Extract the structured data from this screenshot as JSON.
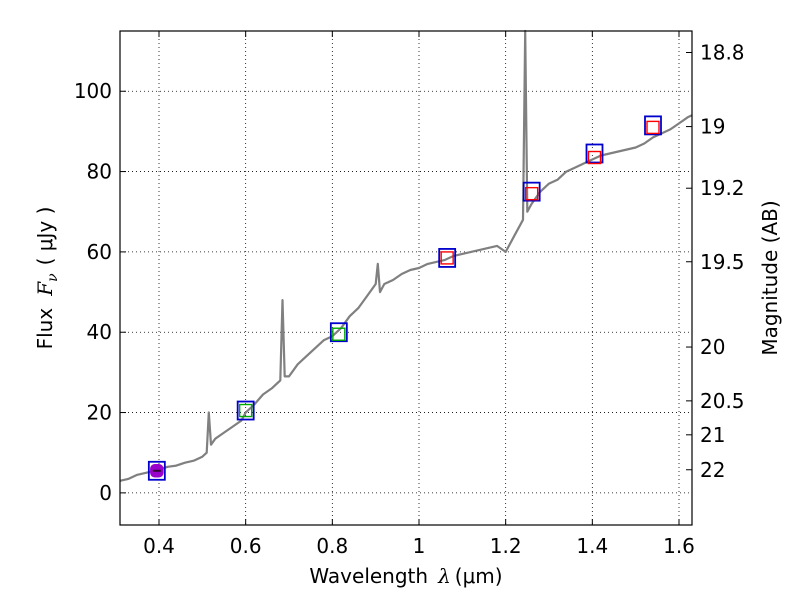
{
  "chart_data": {
    "type": "line",
    "xlabel": "Wavelength",
    "xlabel_symbol": "λ",
    "xlabel_unit": "(μm)",
    "ylabel": "Flux",
    "ylabel_symbol": "F",
    "ylabel_subscript": "ν",
    "ylabel_unit": "( μJy )",
    "y2label": "Magnitude (AB)",
    "xlim": [
      0.31,
      1.63
    ],
    "ylim": [
      -8,
      115
    ],
    "x_ticks": [
      0.4,
      0.6,
      0.8,
      1.0,
      1.2,
      1.4,
      1.6
    ],
    "x_tick_labels": [
      "0.4",
      "0.6",
      "0.8",
      "1",
      "1.2",
      "1.4",
      "1.6"
    ],
    "y_ticks": [
      0,
      20,
      40,
      60,
      80,
      100
    ],
    "y_tick_labels": [
      "0",
      "20",
      "40",
      "60",
      "80",
      "100"
    ],
    "mag_ticks": [
      18.8,
      19,
      19.2,
      19.5,
      20,
      20.5,
      21,
      22
    ],
    "mag_tick_labels": [
      "18.8",
      "19",
      "19.2",
      "19.5",
      "20",
      "20.5",
      "21",
      "22"
    ],
    "grid": true,
    "colors": {
      "spectrum": "#808080",
      "photometry_square": "#0000cc",
      "model_red": "#ff0000",
      "model_green": "#00aa00",
      "model_purple": "#9900cc"
    },
    "spectrum": {
      "name": "spectrum",
      "x": [
        0.31,
        0.33,
        0.35,
        0.37,
        0.39,
        0.4,
        0.42,
        0.44,
        0.46,
        0.48,
        0.5,
        0.51,
        0.515,
        0.52,
        0.53,
        0.55,
        0.57,
        0.59,
        0.6,
        0.62,
        0.64,
        0.66,
        0.68,
        0.685,
        0.69,
        0.7,
        0.72,
        0.74,
        0.76,
        0.78,
        0.8,
        0.82,
        0.84,
        0.86,
        0.88,
        0.9,
        0.905,
        0.91,
        0.92,
        0.94,
        0.96,
        0.98,
        1.0,
        1.02,
        1.04,
        1.06,
        1.08,
        1.1,
        1.12,
        1.14,
        1.16,
        1.18,
        1.2,
        1.22,
        1.24,
        1.245,
        1.25,
        1.26,
        1.28,
        1.3,
        1.32,
        1.34,
        1.36,
        1.38,
        1.4,
        1.42,
        1.44,
        1.46,
        1.48,
        1.5,
        1.52,
        1.54,
        1.56,
        1.58,
        1.6,
        1.62,
        1.63
      ],
      "y": [
        3,
        3.5,
        4.5,
        5,
        5.5,
        5.8,
        6.5,
        6.8,
        7.5,
        8,
        9,
        10,
        20,
        12,
        13.5,
        15,
        16.5,
        18,
        20,
        22,
        24.5,
        26,
        28,
        48,
        29,
        29,
        32,
        34,
        36,
        38,
        39,
        41,
        44,
        46,
        49,
        52,
        57,
        50,
        52,
        53,
        54.5,
        55.5,
        56,
        57,
        57.5,
        58,
        59,
        59.5,
        60,
        60.5,
        61,
        61.5,
        60,
        64,
        68,
        115,
        70,
        72,
        75,
        77,
        78,
        80,
        81,
        82,
        83,
        84,
        84.5,
        85,
        85.5,
        86,
        87,
        88.5,
        89.5,
        90.5,
        92,
        93.5,
        94
      ]
    },
    "photometry": {
      "name": "photometry",
      "x": [
        0.395,
        0.6,
        0.815,
        1.065,
        1.26,
        1.405,
        1.54
      ],
      "y": [
        5.5,
        20.5,
        40,
        58.5,
        75,
        84.5,
        91.5
      ]
    },
    "model": {
      "name": "model",
      "x": [
        0.395,
        0.6,
        0.815,
        1.065,
        1.26,
        1.405,
        1.54
      ],
      "y": [
        5.5,
        20.5,
        39.5,
        58.5,
        74.5,
        83.5,
        91
      ],
      "marker_colors": [
        "purple",
        "green",
        "green",
        "red",
        "red",
        "red",
        "red"
      ]
    }
  }
}
